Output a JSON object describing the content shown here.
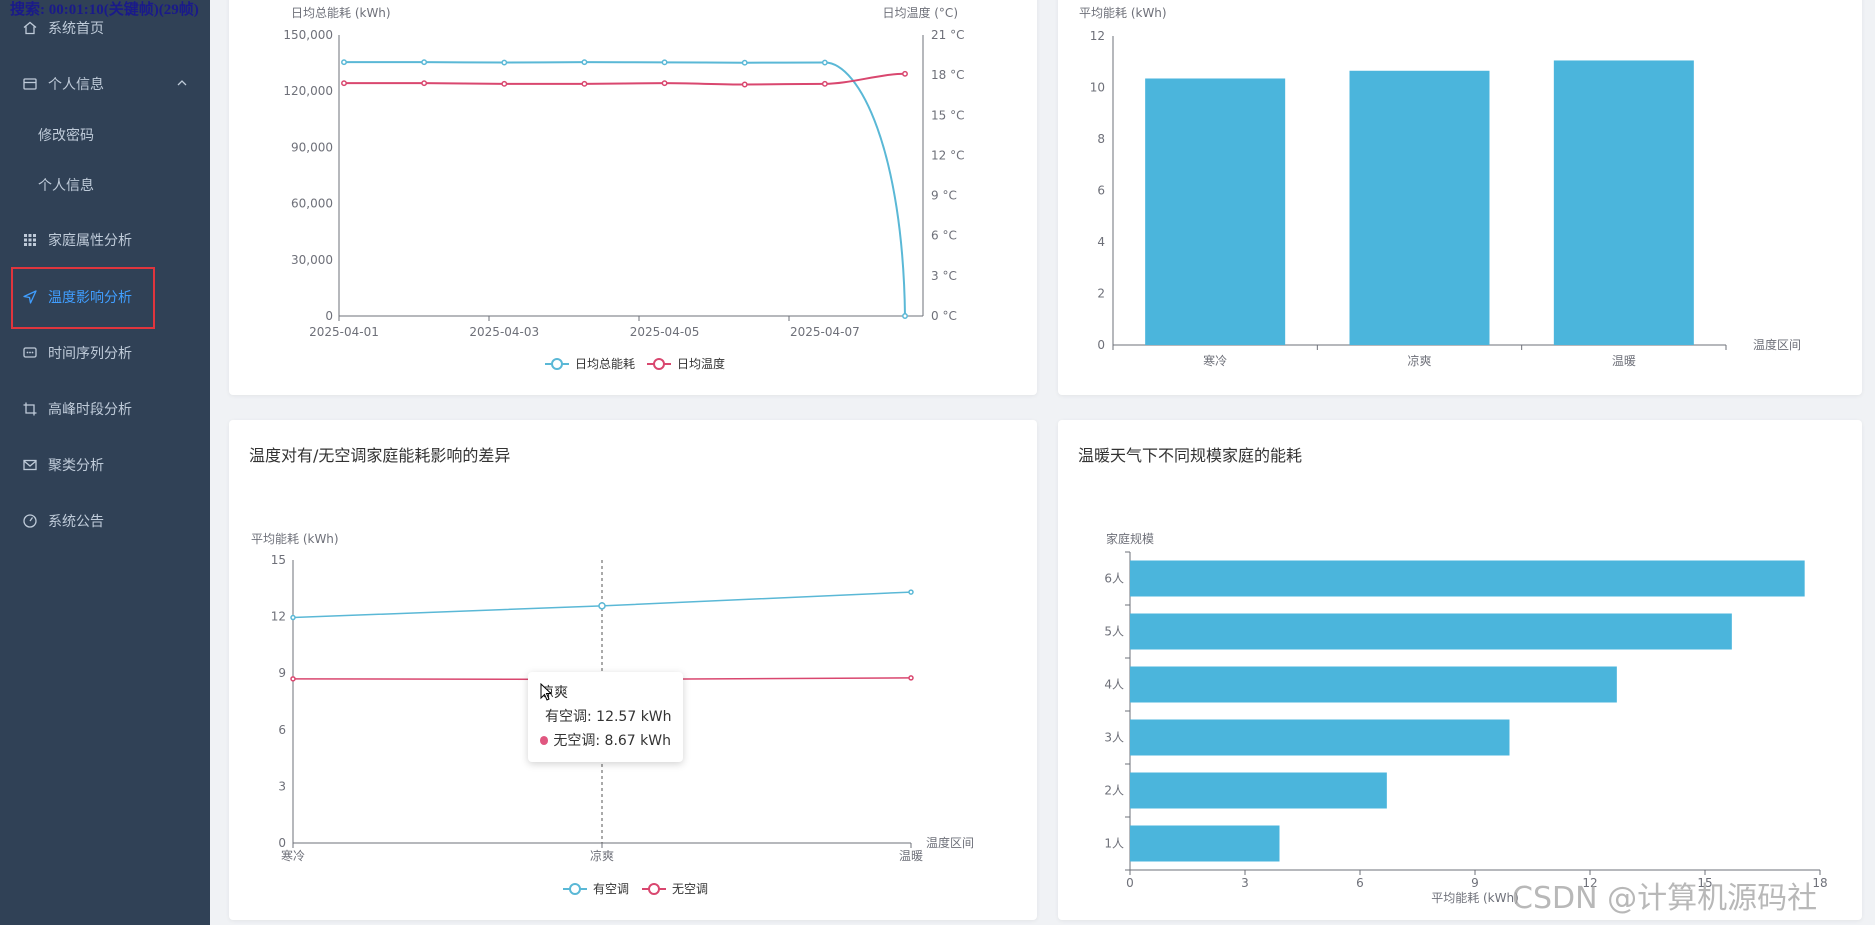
{
  "recording_banner": "搜索: 00:01:10(关键帧)(29帧)",
  "sidebar": {
    "items": [
      {
        "label": "系统首页",
        "icon": "home-icon"
      },
      {
        "label": "个人信息",
        "icon": "card-icon"
      },
      {
        "label": "修改密码"
      },
      {
        "label": "个人信息"
      },
      {
        "label": "家庭属性分析",
        "icon": "grid-icon"
      },
      {
        "label": "温度影响分析",
        "icon": "send-icon"
      },
      {
        "label": "时间序列分析",
        "icon": "chat-icon"
      },
      {
        "label": "高峰时段分析",
        "icon": "crop-icon"
      },
      {
        "label": "聚类分析",
        "icon": "mail-icon"
      },
      {
        "label": "系统公告",
        "icon": "speedometer-icon"
      }
    ],
    "colors": {
      "bg": "#304156",
      "text": "#bfcbd9",
      "active": "#409eff"
    }
  },
  "watermark": "CSDN @计算机源码社",
  "tooltip": {
    "title": "凉爽",
    "rows": [
      {
        "label": "有空调: 12.57 kWh",
        "color": "#5ab8d6"
      },
      {
        "label": "无空调: 8.67 kWh",
        "color": "#e05780"
      }
    ]
  },
  "chart_data": [
    {
      "type": "line",
      "title": "",
      "ylabel": "日均总能耗 (kWh)",
      "y2label": "日均温度 (°C)",
      "x": [
        "2025-04-01",
        "2025-04-02",
        "2025-04-03",
        "2025-04-04",
        "2025-04-05",
        "2025-04-06",
        "2025-04-07",
        "2025-04-08"
      ],
      "x_ticks": [
        "2025-04-01",
        "2025-04-03",
        "2025-04-05",
        "2025-04-07"
      ],
      "ylim": [
        0,
        150000
      ],
      "y_ticks": [
        "0",
        "30,000",
        "60,000",
        "90,000",
        "120,000",
        "150,000"
      ],
      "y2lim": [
        0,
        21
      ],
      "y2_ticks": [
        "0 °C",
        "3 °C",
        "6 °C",
        "9 °C",
        "12 °C",
        "15 °C",
        "18 °C",
        "21 °C"
      ],
      "series": [
        {
          "name": "日均总能耗",
          "axis": "left",
          "color": "#5ab8d6",
          "values": [
            135500,
            135500,
            135300,
            135500,
            135400,
            135200,
            135300,
            0
          ]
        },
        {
          "name": "日均温度",
          "axis": "right",
          "color": "#d9476f",
          "values": [
            17.4,
            17.4,
            17.35,
            17.35,
            17.4,
            17.3,
            17.35,
            18.1
          ]
        }
      ]
    },
    {
      "type": "bar",
      "title": "",
      "ylabel": "平均能耗 (kWh)",
      "xlabel": "温度区间",
      "categories": [
        "寒冷",
        "凉爽",
        "温暖"
      ],
      "values": [
        10.35,
        10.65,
        11.05
      ],
      "ylim": [
        0,
        12
      ],
      "y_ticks": [
        "0",
        "2",
        "4",
        "6",
        "8",
        "10",
        "12"
      ],
      "color": "#4bb5dc"
    },
    {
      "type": "line",
      "title": "温度对有/无空调家庭能耗影响的差异",
      "ylabel": "平均能耗 (kWh)",
      "xlabel": "温度区间",
      "categories": [
        "寒冷",
        "凉爽",
        "温暖"
      ],
      "ylim": [
        0,
        15
      ],
      "y_ticks": [
        "0",
        "3",
        "6",
        "9",
        "12",
        "15"
      ],
      "series": [
        {
          "name": "有空调",
          "color": "#5ab8d6",
          "values": [
            11.95,
            12.57,
            13.3
          ]
        },
        {
          "name": "无空调",
          "color": "#d9476f",
          "values": [
            8.7,
            8.67,
            8.75
          ]
        }
      ]
    },
    {
      "type": "bar",
      "orientation": "horizontal",
      "title": "温暖天气下不同规模家庭的能耗",
      "ylabel": "家庭规模",
      "xlabel": "平均能耗 (kWh)",
      "categories": [
        "1人",
        "2人",
        "3人",
        "4人",
        "5人",
        "6人"
      ],
      "values": [
        3.9,
        6.7,
        9.9,
        12.7,
        15.7,
        17.6
      ],
      "xlim": [
        0,
        18
      ],
      "x_ticks": [
        "0",
        "3",
        "6",
        "9",
        "12",
        "15",
        "18"
      ],
      "color": "#4bb5dc"
    }
  ]
}
